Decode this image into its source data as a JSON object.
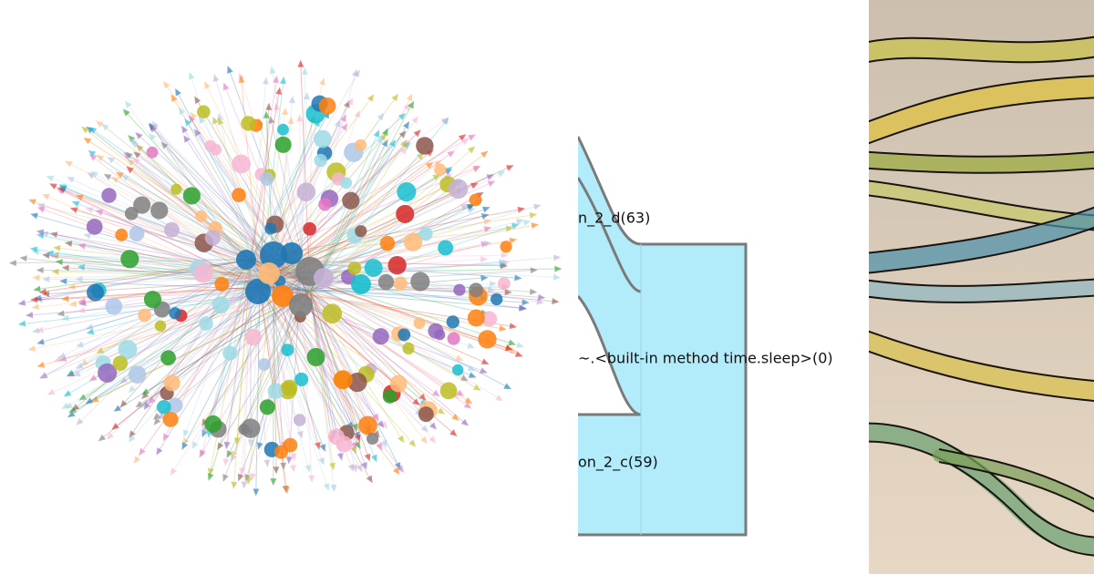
{
  "panels": {
    "flow_labels": [
      "n_2_d(63)",
      "~.<built-in method time.sleep>(0)",
      "on_2_c(59)"
    ]
  }
}
